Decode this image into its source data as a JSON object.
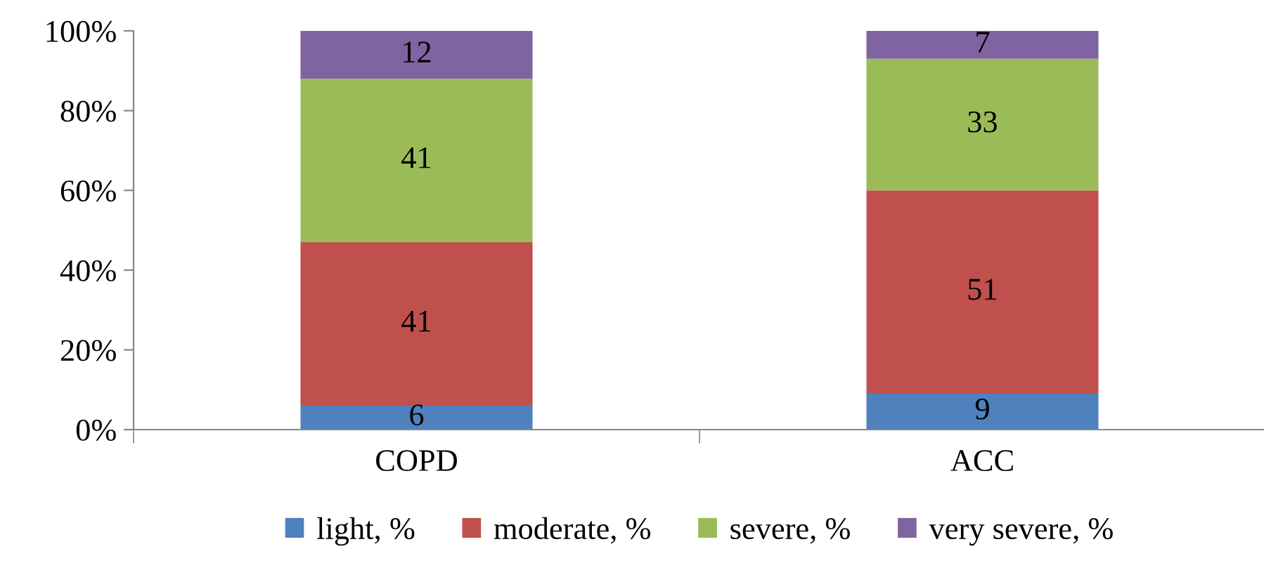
{
  "chart_data": {
    "type": "bar",
    "stacked": true,
    "categories": [
      "COPD",
      "ACC"
    ],
    "series": [
      {
        "name": "light, %",
        "color": "#4f81bd",
        "values": [
          6,
          9
        ]
      },
      {
        "name": "moderate, %",
        "color": "#c0504d",
        "values": [
          41,
          51
        ]
      },
      {
        "name": "severe, %",
        "color": "#9bbb59",
        "values": [
          41,
          33
        ]
      },
      {
        "name": "very severe, %",
        "color": "#8064a2",
        "values": [
          12,
          7
        ]
      }
    ],
    "ylim": [
      0,
      100
    ],
    "yticks": [
      {
        "value": 0,
        "label": "0%"
      },
      {
        "value": 20,
        "label": "20%"
      },
      {
        "value": 40,
        "label": "40%"
      },
      {
        "value": 60,
        "label": "60%"
      },
      {
        "value": 80,
        "label": "80%"
      },
      {
        "value": 100,
        "label": "100%"
      }
    ],
    "data_labels": true,
    "grid": false,
    "legend": "bottom"
  }
}
